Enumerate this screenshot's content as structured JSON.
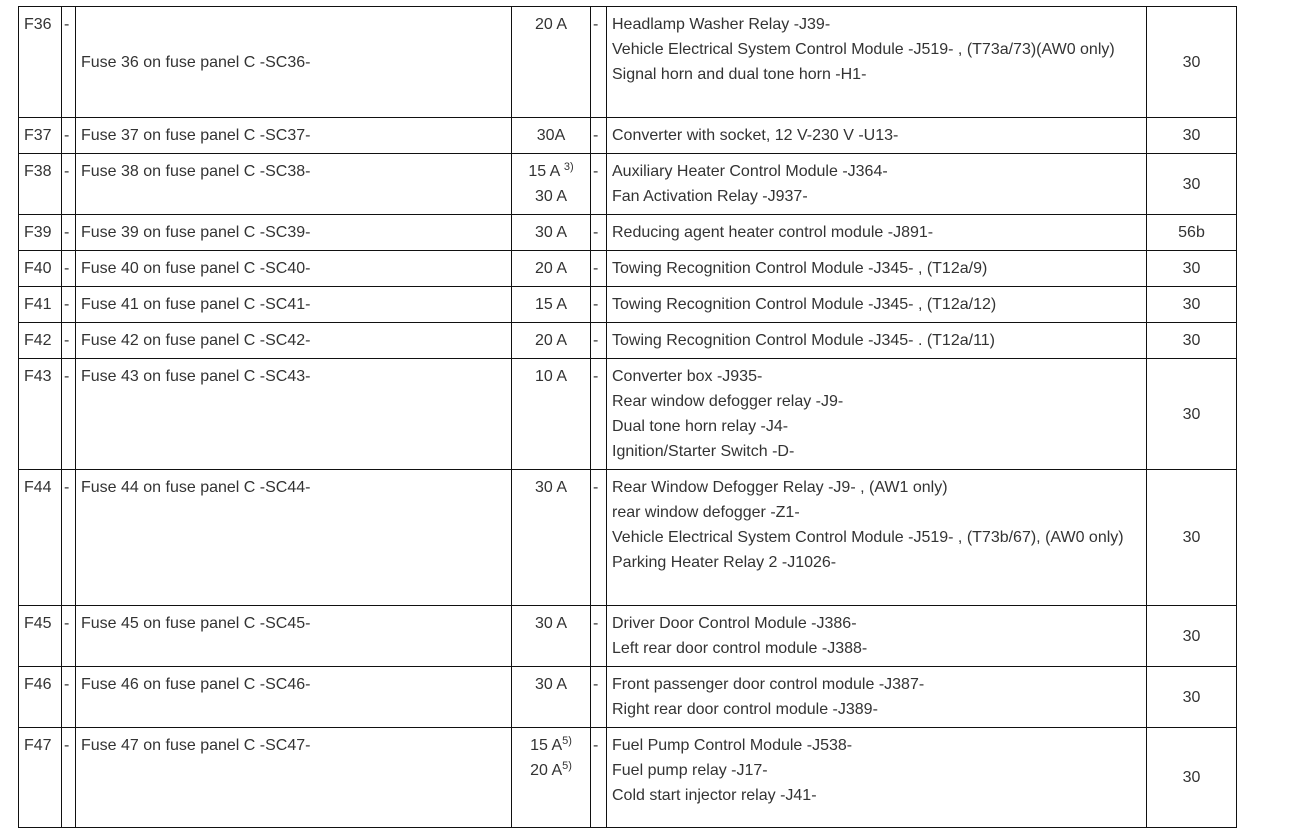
{
  "rows": [
    {
      "fuse": "F36",
      "dash1": "-",
      "description": "Fuse 36 on fuse panel C -SC36-",
      "amps": [
        {
          "v": "20 A",
          "sup": ""
        }
      ],
      "dash2": "-",
      "components": [
        "Headlamp Washer Relay -J39-",
        "Vehicle Electrical System Control Module -J519- , (T73a/73)(AW0 only)",
        "Signal horn and dual tone horn -H1-"
      ],
      "terminal": "30"
    },
    {
      "fuse": "F37",
      "dash1": "-",
      "description": "Fuse 37 on fuse panel C -SC37-",
      "amps": [
        {
          "v": "30A",
          "sup": ""
        }
      ],
      "dash2": "-",
      "components": [
        "Converter with socket, 12 V-230 V -U13-"
      ],
      "terminal": "30"
    },
    {
      "fuse": "F38",
      "dash1": "-",
      "description": "Fuse 38 on fuse panel C -SC38-",
      "amps": [
        {
          "v": "15 A ",
          "sup": "3)"
        },
        {
          "v": "30 A",
          "sup": ""
        }
      ],
      "dash2": "-",
      "components": [
        "Auxiliary Heater Control Module -J364-",
        "Fan Activation Relay -J937-"
      ],
      "terminal": "30"
    },
    {
      "fuse": "F39",
      "dash1": "-",
      "description": "Fuse 39 on fuse panel C -SC39-",
      "amps": [
        {
          "v": "30 A",
          "sup": ""
        }
      ],
      "dash2": "-",
      "components": [
        "Reducing agent heater control module -J891-"
      ],
      "terminal": "56b"
    },
    {
      "fuse": "F40",
      "dash1": "-",
      "description": "Fuse 40 on fuse panel C -SC40-",
      "amps": [
        {
          "v": "20 A",
          "sup": ""
        }
      ],
      "dash2": "-",
      "components": [
        "Towing Recognition Control Module -J345- , (T12a/9)"
      ],
      "terminal": "30"
    },
    {
      "fuse": "F41",
      "dash1": "-",
      "description": "Fuse 41 on fuse panel C -SC41-",
      "amps": [
        {
          "v": "15 A",
          "sup": ""
        }
      ],
      "dash2": "-",
      "components": [
        "Towing Recognition Control Module -J345- , (T12a/12)"
      ],
      "terminal": "30"
    },
    {
      "fuse": "F42",
      "dash1": "-",
      "description": "Fuse 42 on fuse panel C -SC42-",
      "amps": [
        {
          "v": "20 A",
          "sup": ""
        }
      ],
      "dash2": "-",
      "components": [
        "Towing Recognition Control Module -J345- . (T12a/11)"
      ],
      "terminal": "30"
    },
    {
      "fuse": "F43",
      "dash1": "-",
      "description": "Fuse 43 on fuse panel C -SC43-",
      "amps": [
        {
          "v": "10 A",
          "sup": ""
        }
      ],
      "dash2": "-",
      "components": [
        "Converter box -J935-",
        "Rear window defogger relay -J9-",
        "Dual tone horn relay -J4-",
        "Ignition/Starter Switch -D-"
      ],
      "terminal": "30"
    },
    {
      "fuse": "F44",
      "dash1": "-",
      "description": "Fuse 44 on fuse panel C -SC44-",
      "amps": [
        {
          "v": "30 A",
          "sup": ""
        }
      ],
      "dash2": "-",
      "components": [
        "Rear Window Defogger Relay -J9- , (AW1 only)",
        "rear window defogger -Z1-",
        "Vehicle Electrical System Control Module -J519- , (T73b/67), (AW0 only)",
        "Parking Heater Relay 2 -J1026-"
      ],
      "terminal": "30"
    },
    {
      "fuse": "F45",
      "dash1": "-",
      "description": "Fuse 45 on fuse panel C -SC45-",
      "amps": [
        {
          "v": "30 A",
          "sup": ""
        }
      ],
      "dash2": "-",
      "components": [
        "Driver Door Control Module -J386-",
        "Left rear door control module -J388-"
      ],
      "terminal": "30"
    },
    {
      "fuse": "F46",
      "dash1": "-",
      "description": "Fuse 46 on fuse panel C -SC46-",
      "amps": [
        {
          "v": "30 A",
          "sup": ""
        }
      ],
      "dash2": "-",
      "components": [
        "Front passenger door control module -J387-",
        "Right rear door control module -J389-"
      ],
      "terminal": "30"
    },
    {
      "fuse": "F47",
      "dash1": "-",
      "description": "Fuse 47 on fuse panel C -SC47-",
      "amps": [
        {
          "v": "15 A",
          "sup": "5)"
        },
        {
          "v": "20 A",
          "sup": "5)"
        }
      ],
      "dash2": "-",
      "components": [
        "Fuel Pump Control Module -J538-",
        "Fuel pump relay -J17-",
        "Cold start injector relay -J41-"
      ],
      "terminal": "30"
    }
  ]
}
